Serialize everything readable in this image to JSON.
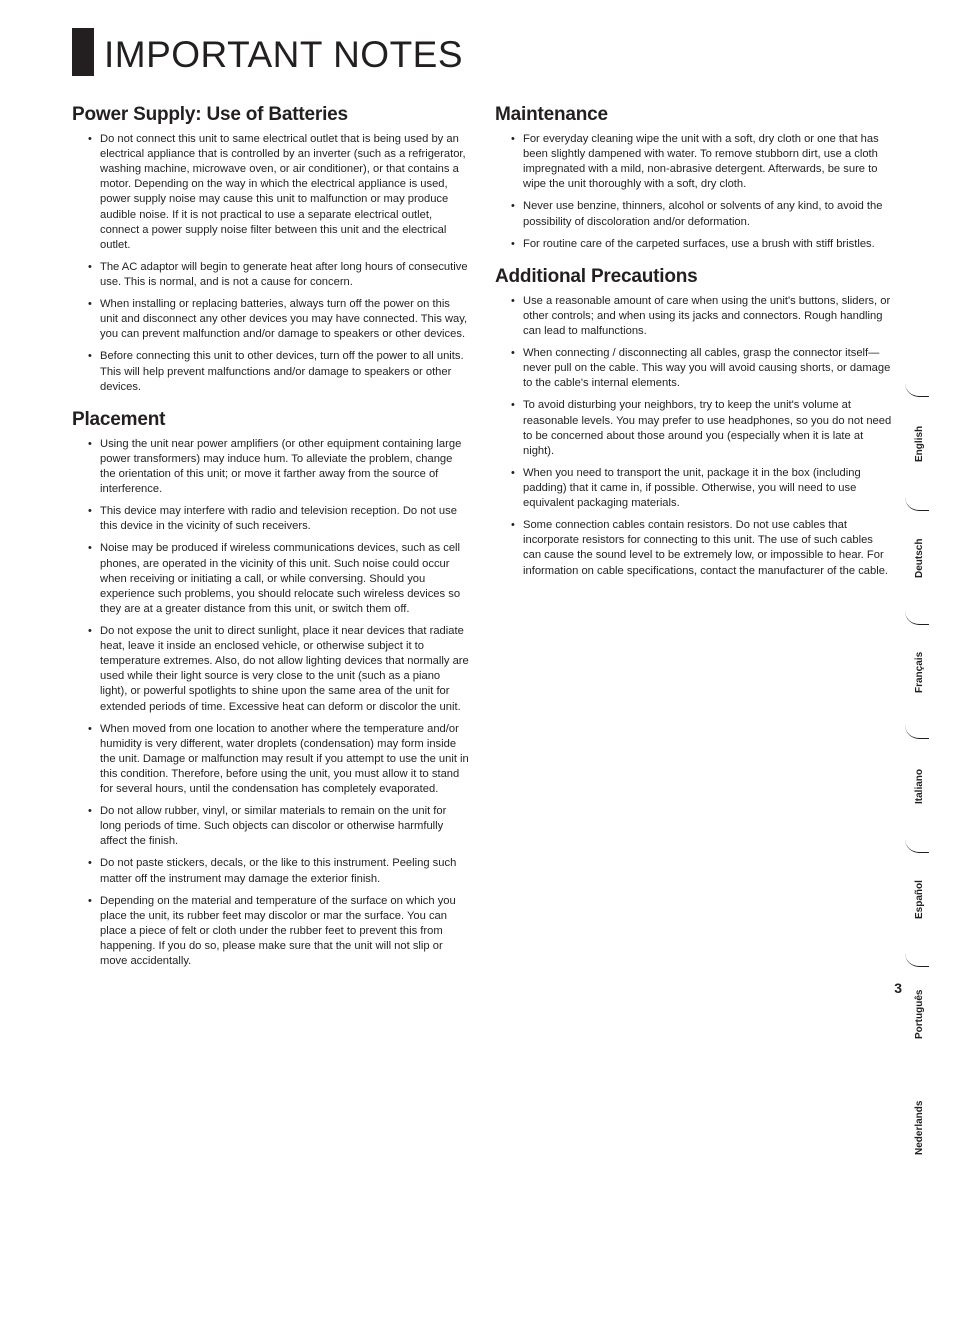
{
  "page": {
    "title": "IMPORTANT NOTES",
    "number": "3"
  },
  "left": {
    "s1": {
      "heading": "Power Supply: Use of Batteries",
      "items": [
        "Do not connect this unit to same electrical outlet that is being used by an electrical appliance that is controlled by an inverter (such as a refrigerator, washing machine, microwave oven, or air conditioner), or that contains a motor. Depending on the way in which the electrical appliance is used, power supply noise may cause this unit to malfunction or may produce audible noise. If it is not practical to use a separate electrical outlet, connect a power supply noise filter between this unit and the electrical outlet.",
        "The AC adaptor will begin to generate heat after long hours of consecutive use. This is normal, and is not a cause for concern.",
        "When installing or replacing batteries, always turn off the power on this unit and disconnect any other devices you may have connected. This way, you can prevent malfunction and/or damage to speakers or other devices.",
        "Before connecting this unit to other devices, turn off the power to all units. This will help prevent malfunctions and/or damage to speakers or other devices."
      ]
    },
    "s2": {
      "heading": "Placement",
      "items": [
        "Using the unit near power amplifiers (or other equipment containing large power transformers) may induce hum. To alleviate the problem, change the orientation of this unit; or move it farther away from the source of interference.",
        "This device may interfere with radio and television reception. Do not use this device in the vicinity of such receivers.",
        "Noise may be produced if wireless communications devices, such as cell phones, are operated in the vicinity of this unit. Such noise could occur when receiving or initiating a call, or while conversing. Should you experience such problems, you should relocate such wireless devices so they are at a greater distance from this unit, or switch them off.",
        "Do not expose the unit to direct sunlight, place it near devices that radiate heat, leave it inside an enclosed vehicle, or otherwise subject it to temperature extremes. Also, do not allow lighting devices that normally are used while their light source is very close to the unit (such as a piano light), or powerful spotlights to shine upon the same area of the unit for extended periods of time. Excessive heat can deform or discolor the unit.",
        "When moved from one location to another where the temperature and/or humidity is very different, water droplets (condensation) may form inside the unit. Damage or malfunction may result if you attempt to use the unit in this condition. Therefore, before using the unit, you must allow it to stand for several hours, until the condensation has completely evaporated.",
        "Do not allow rubber, vinyl, or similar materials to remain on the unit for long periods of time. Such objects can discolor or otherwise harmfully affect the finish.",
        "Do not paste stickers, decals, or the like to this instrument. Peeling such matter off the instrument may damage the exterior finish.",
        "Depending on the material and temperature of the surface on which you place the unit, its rubber feet may discolor or mar the surface. You can place a piece of felt or cloth under the rubber feet to prevent this from happening. If you do so, please make sure that the unit will not slip or move accidentally."
      ]
    }
  },
  "right": {
    "s1": {
      "heading": "Maintenance",
      "items": [
        "For everyday cleaning wipe the unit with a soft, dry cloth or one that has been slightly dampened with water. To remove stubborn dirt, use a cloth impregnated with a mild, non-abrasive detergent. Afterwards, be sure to wipe the unit thoroughly with a soft, dry cloth.",
        "Never use benzine, thinners, alcohol or solvents of any kind, to avoid the possibility of discoloration and/or deformation.",
        "For routine care of the carpeted surfaces, use a brush with stiff bristles."
      ]
    },
    "s2": {
      "heading": "Additional Precautions",
      "items": [
        "Use a reasonable amount of care when using the unit's buttons, sliders, or other controls; and when using its jacks and connectors. Rough handling can lead to malfunctions.",
        "When connecting / disconnecting all cables, grasp the connector itself—never pull on the cable. This way you will avoid causing shorts, or damage to the cable's internal elements.",
        "To avoid disturbing your neighbors, try to keep the unit's volume at reasonable levels. You may prefer to use headphones, so you do not need to be concerned about those around you (especially when it is late at night).",
        "When you need to transport the unit, package it in the box (including padding) that it came in, if possible. Otherwise, you will need to use equivalent packaging materials.",
        "Some connection cables contain resistors. Do not use cables that incorporate resistors for connecting to this unit. The use of such cables can cause the sound level to be extremely low, or impossible to hear. For information on cable specifications, contact the manufacturer of the cable."
      ]
    }
  },
  "languages": [
    "English",
    "Deutsch",
    "Français",
    "Italiano",
    "Español",
    "Português",
    "Nederlands"
  ]
}
